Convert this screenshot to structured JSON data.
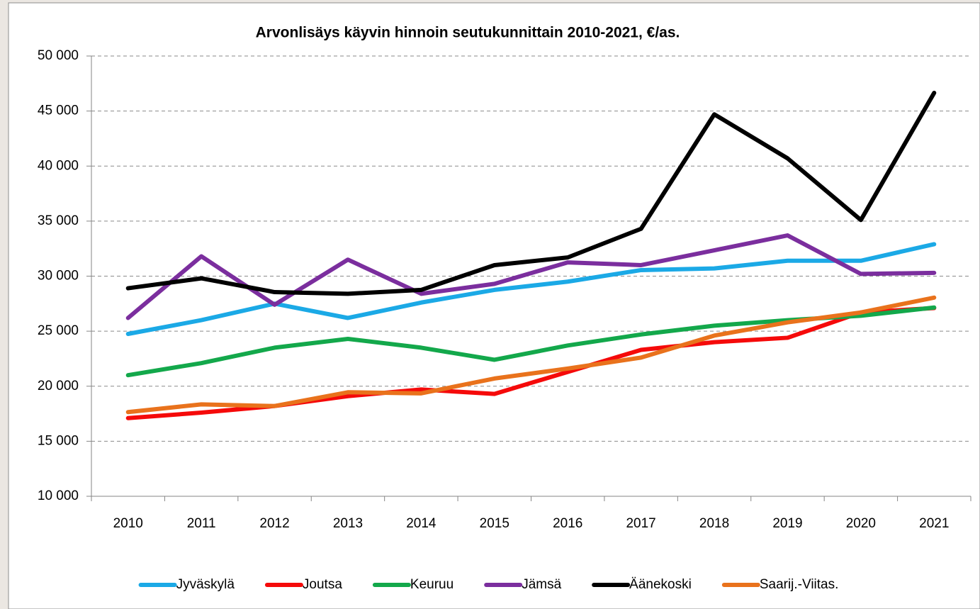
{
  "chart_data": {
    "type": "line",
    "title": "Arvonlisäys käyvin hinnoin seutukunnittain 2010-2021, €/as.",
    "categories": [
      "2010",
      "2011",
      "2012",
      "2013",
      "2014",
      "2015",
      "2016",
      "2017",
      "2018",
      "2019",
      "2020",
      "2021"
    ],
    "ylim": [
      10000,
      50000
    ],
    "yticks": [
      {
        "value": 10000,
        "label": "10 000"
      },
      {
        "value": 15000,
        "label": "15 000"
      },
      {
        "value": 20000,
        "label": "20 000"
      },
      {
        "value": 25000,
        "label": "25 000"
      },
      {
        "value": 30000,
        "label": "30 000"
      },
      {
        "value": 35000,
        "label": "35 000"
      },
      {
        "value": 40000,
        "label": "40 000"
      },
      {
        "value": 45000,
        "label": "45 000"
      },
      {
        "value": 50000,
        "label": "50 000"
      }
    ],
    "grid": true,
    "legend": "bottom",
    "series": [
      {
        "name": "Jyväskylä",
        "color": "#1ba9e6",
        "values": [
          24750,
          26000,
          27500,
          26200,
          27600,
          28750,
          29500,
          30550,
          30700,
          31400,
          31400,
          32900
        ]
      },
      {
        "name": "Joutsa",
        "color": "#f50a0a",
        "values": [
          17100,
          17600,
          18200,
          19100,
          19700,
          19300,
          21300,
          23300,
          24000,
          24400,
          26700,
          27100
        ]
      },
      {
        "name": "Keuruu",
        "color": "#13a84b",
        "values": [
          21000,
          22100,
          23500,
          24300,
          23500,
          22400,
          23700,
          24700,
          25500,
          26000,
          26400,
          27150
        ]
      },
      {
        "name": "Jämsä",
        "color": "#7b2e9e",
        "values": [
          26200,
          31800,
          27400,
          31500,
          28400,
          29300,
          31250,
          31000,
          32350,
          33700,
          30200,
          30300
        ]
      },
      {
        "name": "Äänekoski",
        "color": "#000000",
        "values": [
          28900,
          29800,
          28550,
          28400,
          28750,
          31000,
          31700,
          34300,
          44700,
          40700,
          35100,
          46650
        ]
      },
      {
        "name": "Saarij.-Viitas.",
        "color": "#e9721c",
        "values": [
          17650,
          18350,
          18200,
          19450,
          19350,
          20700,
          21600,
          22600,
          24600,
          25800,
          26700,
          28050
        ]
      }
    ]
  }
}
